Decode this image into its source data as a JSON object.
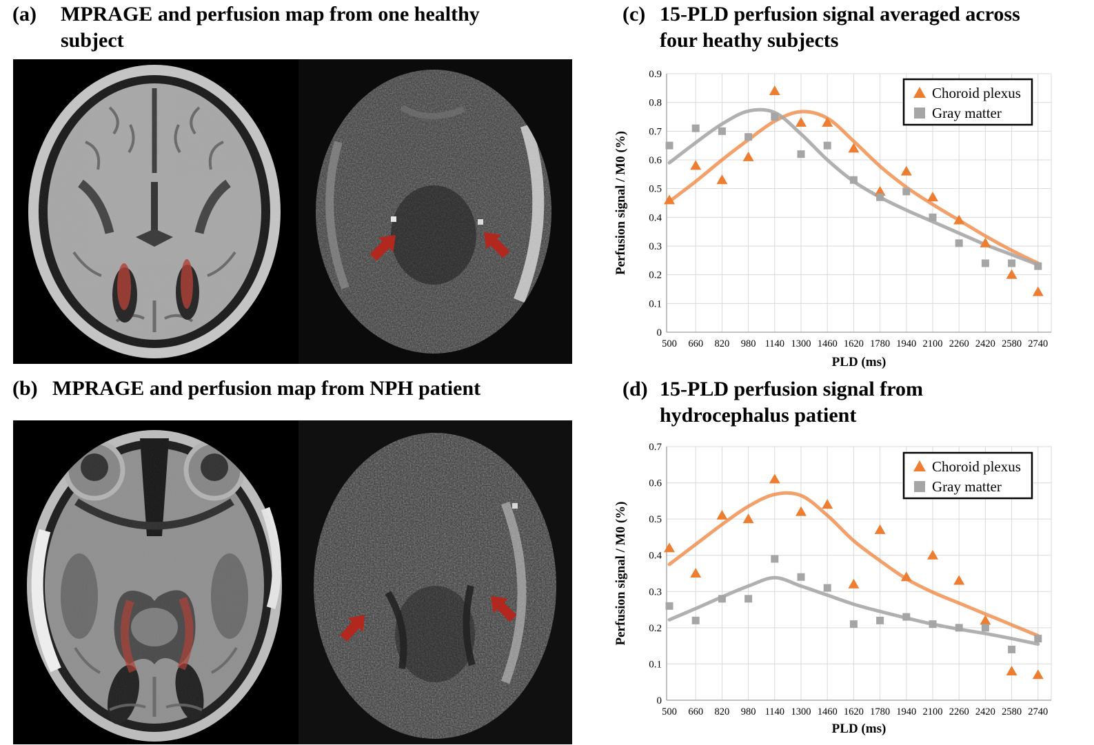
{
  "figure": {
    "panels": {
      "a": {
        "tag": "(a)",
        "title_lines": [
          "MPRAGE and perfusion map from one healthy",
          "subject"
        ]
      },
      "b": {
        "tag": "(b)",
        "title_lines": [
          "MPRAGE and perfusion map from NPH patient",
          ""
        ]
      },
      "c": {
        "tag": "(c)",
        "title_lines": [
          "15-PLD perfusion signal averaged across",
          "four heathy subjects"
        ]
      },
      "d": {
        "tag": "(d)",
        "title_lines": [
          "15-PLD perfusion signal from",
          "hydrocephalus patient"
        ]
      }
    },
    "annotations": {
      "mprage_overlay_meaning": "choroid plexus highlighted in red",
      "arrow_meaning": "red arrows point to choroid plexus on perfusion maps"
    }
  },
  "colors": {
    "choroid_marker": "#ED7D31",
    "choroid_trend": "rgba(237,125,49,0.72)",
    "gray_marker": "#A5A5A5",
    "gray_trend": "rgba(165,165,165,0.88)",
    "grid": "#D9D9D9",
    "axis": "#9E9E9E",
    "arrow_red": "#B2281E",
    "overlay_red": "#B03A2E",
    "legend_border": "#000000"
  },
  "chart_data": [
    {
      "id": "c",
      "type": "scatter",
      "title": "15-PLD perfusion signal averaged across four heathy subjects",
      "xlabel": "PLD (ms)",
      "ylabel": "Perfusion signal / M0 (%)",
      "ylim": [
        0,
        0.9
      ],
      "ytick_step": 0.1,
      "grid": true,
      "legend_position": "top-right",
      "categories": [
        500,
        660,
        820,
        980,
        1140,
        1300,
        1460,
        1620,
        1780,
        1940,
        2100,
        2260,
        2420,
        2580,
        2740
      ],
      "series": [
        {
          "name": "Choroid plexus",
          "marker": "triangle",
          "color": "#ED7D31",
          "values": [
            0.46,
            0.58,
            0.53,
            0.61,
            0.84,
            0.73,
            0.73,
            0.64,
            0.49,
            0.56,
            0.47,
            0.39,
            0.31,
            0.2,
            0.14
          ],
          "trend": [
            0.455,
            0.525,
            0.6,
            0.67,
            0.735,
            0.768,
            0.745,
            0.665,
            0.578,
            0.505,
            0.445,
            0.39,
            0.335,
            0.285,
            0.24
          ]
        },
        {
          "name": "Gray matter",
          "marker": "square",
          "color": "#A5A5A5",
          "values": [
            0.65,
            0.71,
            0.7,
            0.68,
            0.75,
            0.62,
            0.65,
            0.53,
            0.47,
            0.49,
            0.4,
            0.31,
            0.24,
            0.24,
            0.23
          ],
          "trend": [
            0.59,
            0.66,
            0.725,
            0.77,
            0.765,
            0.69,
            0.6,
            0.525,
            0.47,
            0.425,
            0.385,
            0.345,
            0.305,
            0.27,
            0.235
          ]
        }
      ]
    },
    {
      "id": "d",
      "type": "scatter",
      "title": "15-PLD perfusion signal from hydrocephalus patient",
      "xlabel": "PLD (ms)",
      "ylabel": "Perfusion signal / M0 (%)",
      "ylim": [
        0,
        0.7
      ],
      "ytick_step": 0.1,
      "grid": true,
      "legend_position": "top-right",
      "categories": [
        500,
        660,
        820,
        980,
        1140,
        1300,
        1460,
        1620,
        1780,
        1940,
        2100,
        2260,
        2420,
        2580,
        2740
      ],
      "series": [
        {
          "name": "Choroid plexus",
          "marker": "triangle",
          "color": "#ED7D31",
          "values": [
            0.42,
            0.35,
            0.51,
            0.5,
            0.61,
            0.52,
            0.54,
            0.32,
            0.47,
            0.34,
            0.4,
            0.33,
            0.22,
            0.08,
            0.07
          ],
          "trend": [
            0.375,
            0.43,
            0.485,
            0.535,
            0.568,
            0.565,
            0.51,
            0.44,
            0.385,
            0.335,
            0.298,
            0.268,
            0.238,
            0.208,
            0.178
          ]
        },
        {
          "name": "Gray matter",
          "marker": "square",
          "color": "#A5A5A5",
          "values": [
            0.26,
            0.22,
            0.28,
            0.28,
            0.39,
            0.34,
            0.31,
            0.21,
            0.22,
            0.23,
            0.21,
            0.2,
            0.2,
            0.14,
            0.17
          ],
          "trend": [
            0.222,
            0.253,
            0.285,
            0.315,
            0.338,
            0.315,
            0.29,
            0.265,
            0.245,
            0.227,
            0.21,
            0.196,
            0.184,
            0.17,
            0.155
          ]
        }
      ]
    }
  ]
}
